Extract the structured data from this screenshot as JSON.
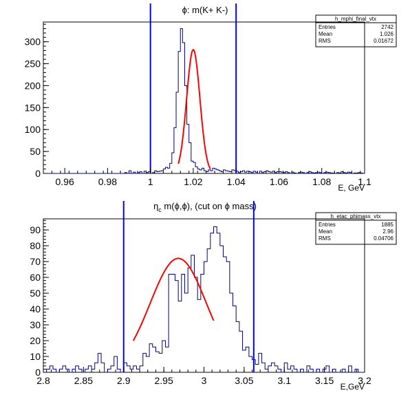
{
  "chart_data": [
    {
      "type": "histogram",
      "title": "ϕ: m(K+ K-)",
      "xlabel": "E, GeV",
      "ylabel": "",
      "xlim": [
        0.95,
        1.1
      ],
      "ylim": [
        0,
        345
      ],
      "x_ticks": [
        "0.96",
        "0.98",
        "1",
        "1.02",
        "1.04",
        "1.06",
        "1.08",
        "1.1"
      ],
      "x_tick_values": [
        0.96,
        0.98,
        1.0,
        1.02,
        1.04,
        1.06,
        1.08,
        1.1
      ],
      "y_ticks": [
        "0",
        "50",
        "100",
        "150",
        "200",
        "250",
        "300"
      ],
      "y_tick_values": [
        0,
        50,
        100,
        150,
        200,
        250,
        300
      ],
      "stats": {
        "name": "h_mphi_final_vtx",
        "rows": [
          [
            "Entries",
            "2742"
          ],
          [
            "Mean",
            "1.026"
          ],
          [
            "RMS",
            "0.01672"
          ]
        ]
      },
      "cut_lines": [
        1.0,
        1.04
      ],
      "bin_low": 0.95,
      "bin_width": 0.001,
      "values": [
        0,
        0,
        0,
        0,
        0,
        0,
        0,
        0,
        0,
        0,
        0,
        0,
        0,
        0,
        0,
        0,
        0,
        0,
        0,
        0,
        0,
        0,
        0,
        0,
        0,
        0,
        0,
        0,
        0,
        0,
        0,
        0,
        0,
        0,
        0,
        0,
        0,
        0,
        2,
        0,
        6,
        0,
        3,
        0,
        2,
        4,
        0,
        5,
        2,
        4,
        0,
        2,
        6,
        4,
        5,
        6,
        10,
        14,
        12,
        23,
        47,
        104,
        185,
        278,
        330,
        298,
        200,
        112,
        70,
        28,
        25,
        15,
        10,
        8,
        12,
        6,
        4,
        8,
        6,
        12,
        10,
        8,
        6,
        4,
        8,
        6,
        5,
        4,
        8,
        6,
        5,
        2,
        4,
        6,
        3,
        5,
        4,
        2,
        5,
        3,
        0,
        5,
        2,
        4,
        6,
        4,
        3,
        5,
        2,
        4,
        4,
        3,
        2,
        4,
        2,
        0,
        3,
        1,
        0,
        2,
        3,
        2,
        0,
        2,
        4,
        2,
        1,
        2,
        3,
        2,
        0,
        2,
        3,
        2,
        1,
        1,
        0,
        2,
        1,
        4,
        2,
        1,
        3,
        2,
        0,
        1,
        1,
        2,
        1,
        0
      ],
      "fit": {
        "amplitude": 282,
        "mean": 1.02,
        "sigma": 0.0031,
        "range": [
          1.013,
          1.028
        ]
      }
    },
    {
      "type": "histogram",
      "title": "η",
      "title_sub": "c",
      "title_rest": " m(ϕ,ϕ), (cut on ϕ mass)",
      "xlabel": "E,GeV",
      "ylabel": "",
      "xlim": [
        2.8,
        3.2
      ],
      "ylim": [
        0,
        97
      ],
      "x_ticks": [
        "2.8",
        "2.85",
        "2.9",
        "2.95",
        "3",
        "3.05",
        "3.1",
        "3.15",
        "3.2"
      ],
      "x_tick_values": [
        2.8,
        2.85,
        2.9,
        2.95,
        3.0,
        3.05,
        3.1,
        3.15,
        3.2
      ],
      "y_ticks": [
        "0",
        "10",
        "20",
        "30",
        "40",
        "50",
        "60",
        "70",
        "80",
        "90"
      ],
      "y_tick_values": [
        0,
        10,
        20,
        30,
        40,
        50,
        60,
        70,
        80,
        90
      ],
      "stats": {
        "name": "h_etac_phimass_vtx",
        "rows": [
          [
            "Entries",
            "1885"
          ],
          [
            "Mean",
            "2.96"
          ],
          [
            "RMS",
            "0.04706"
          ]
        ]
      },
      "cut_lines": [
        2.9,
        3.062
      ],
      "bin_low": 2.8,
      "bin_width": 0.004,
      "values": [
        0,
        2,
        4,
        2,
        0,
        2,
        4,
        2,
        0,
        2,
        4,
        2,
        0,
        2,
        4,
        2,
        6,
        12,
        6,
        0,
        2,
        4,
        10,
        2,
        0,
        6,
        4,
        2,
        4,
        2,
        4,
        12,
        10,
        18,
        16,
        13,
        12,
        20,
        16,
        62,
        62,
        58,
        45,
        62,
        50,
        66,
        74,
        60,
        46,
        62,
        70,
        78,
        88,
        92,
        88,
        80,
        73,
        70,
        50,
        42,
        32,
        26,
        14,
        16,
        10,
        8,
        5,
        12,
        6,
        2,
        4,
        6,
        4,
        2,
        0,
        6,
        2,
        4,
        2,
        0,
        2,
        0,
        4,
        2,
        0,
        2,
        0,
        2,
        4,
        0,
        2,
        0,
        0,
        2,
        0,
        4,
        0,
        2,
        0,
        0
      ],
      "fit": {
        "amplitude": 72,
        "mean": 2.968,
        "sigma": 0.035,
        "range": [
          2.912,
          3.012
        ]
      }
    }
  ]
}
